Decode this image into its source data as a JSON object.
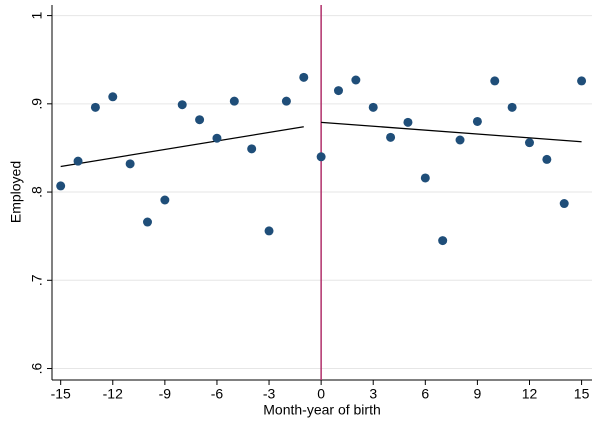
{
  "chart_data": {
    "type": "scatter",
    "xlabel": "Month-year of birth",
    "ylabel": "Employed",
    "series": [
      {
        "color": "#1f4e79",
        "x": [
          -15,
          -14,
          -13,
          -12,
          -11,
          -10,
          -9,
          -8,
          -7,
          -6,
          -5,
          -4,
          -3,
          -2,
          -1,
          0,
          1,
          2,
          3,
          4,
          5,
          6,
          7,
          8,
          9,
          10,
          11,
          12,
          13,
          14,
          15
        ],
        "values": [
          0.807,
          0.835,
          0.896,
          0.908,
          0.832,
          0.766,
          0.791,
          0.899,
          0.882,
          0.861,
          0.903,
          0.849,
          0.756,
          0.903,
          0.93,
          0.84,
          0.915,
          0.927,
          0.896,
          0.862,
          0.879,
          0.816,
          0.745,
          0.859,
          0.88,
          0.926,
          0.896,
          0.856,
          0.837,
          0.787,
          0.926
        ]
      }
    ],
    "fit_lines": [
      {
        "color": "#000000",
        "x": [
          -15,
          -1
        ],
        "values": [
          0.829,
          0.874
        ]
      },
      {
        "color": "#000000",
        "x": [
          0,
          15
        ],
        "values": [
          0.879,
          0.857
        ]
      }
    ],
    "vline": {
      "x": 0,
      "color": "#b0306a"
    },
    "xlim": [
      -15.5,
      15.6
    ],
    "ylim": [
      0.587,
      1.012
    ],
    "xticks": [
      -15,
      -12,
      -9,
      -6,
      -3,
      0,
      3,
      6,
      9,
      12,
      15
    ],
    "yticks": [
      {
        "value": 0.6,
        "label": ".6"
      },
      {
        "value": 0.7,
        "label": ".7"
      },
      {
        "value": 0.8,
        "label": ".8"
      },
      {
        "value": 0.9,
        "label": ".9"
      },
      1
    ],
    "grid": true
  }
}
